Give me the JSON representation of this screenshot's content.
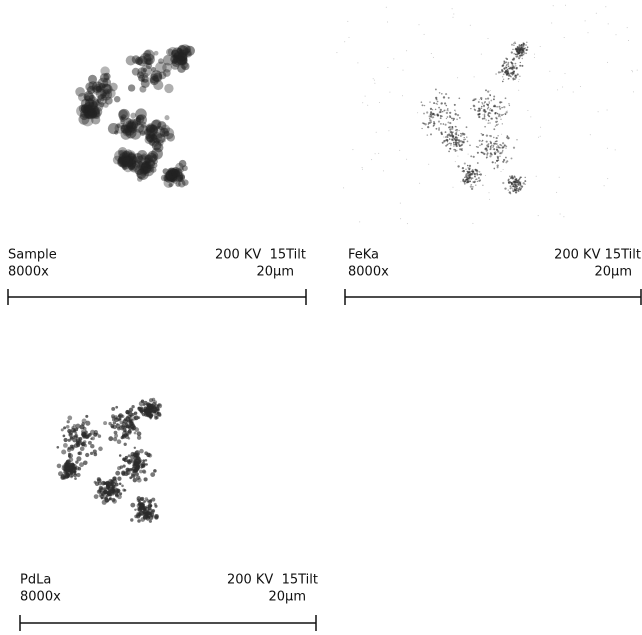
{
  "panels": [
    {
      "label": "Sample",
      "magnification": "8000x",
      "conditions": "200 KV  15Tilt",
      "scale": "20μm"
    },
    {
      "label": "FeKa",
      "magnification": "8000x",
      "conditions": "200 KV 15Tilt",
      "scale": "20μm"
    },
    {
      "label": "PdLa",
      "magnification": "8000x",
      "conditions": "200 KV  15Tilt",
      "scale": "20μm"
    }
  ]
}
